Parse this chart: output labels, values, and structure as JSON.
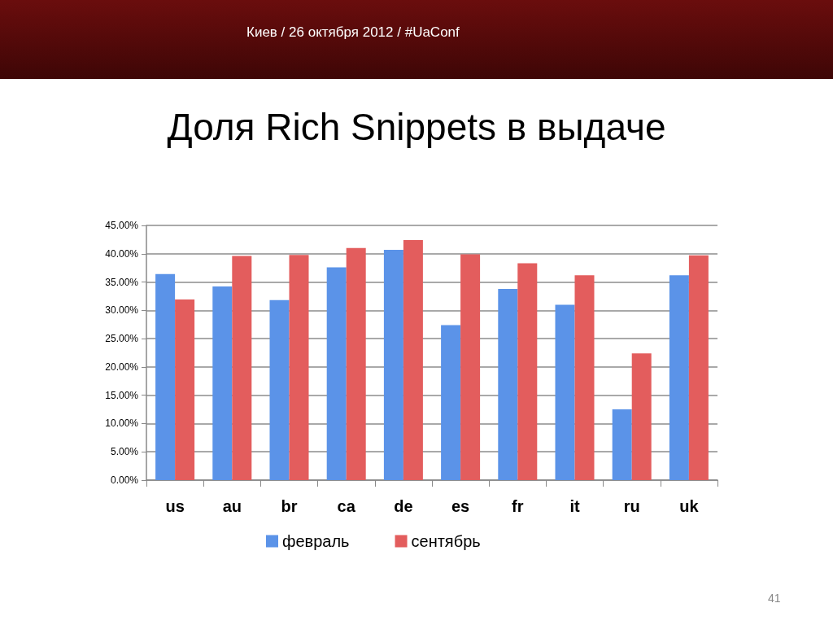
{
  "chart_data": {
    "type": "bar",
    "title": "Доля Rich Snippets в выдаче",
    "annotations": [
      "Киев / 26 октября 2012 / #UaConf",
      "41"
    ],
    "categories": [
      "us",
      "au",
      "br",
      "ca",
      "de",
      "es",
      "fr",
      "it",
      "ru",
      "uk"
    ],
    "series": [
      {
        "name": "февраль",
        "color": "#5b93e8",
        "values": [
          36.4,
          34.2,
          31.8,
          37.6,
          40.7,
          27.4,
          33.8,
          31.0,
          12.5,
          36.2
        ]
      },
      {
        "name": "сентябрь",
        "color": "#e35d5d",
        "values": [
          31.9,
          39.6,
          39.8,
          41.0,
          42.4,
          39.9,
          38.3,
          36.2,
          22.4,
          39.7
        ]
      }
    ],
    "ylim": [
      0,
      45
    ],
    "yticks": [
      {
        "value": 0,
        "label": "0.00%"
      },
      {
        "value": 5,
        "label": "5.00%"
      },
      {
        "value": 10,
        "label": "10.00%"
      },
      {
        "value": 15,
        "label": "15.00%"
      },
      {
        "value": 20,
        "label": "20.00%"
      },
      {
        "value": 25,
        "label": "25.00%"
      },
      {
        "value": 30,
        "label": "30.00%"
      },
      {
        "value": 35,
        "label": "35.00%"
      },
      {
        "value": 40,
        "label": "40.00%"
      },
      {
        "value": 45,
        "label": "45.00%"
      }
    ],
    "grid": "y",
    "legend": "bottom"
  }
}
